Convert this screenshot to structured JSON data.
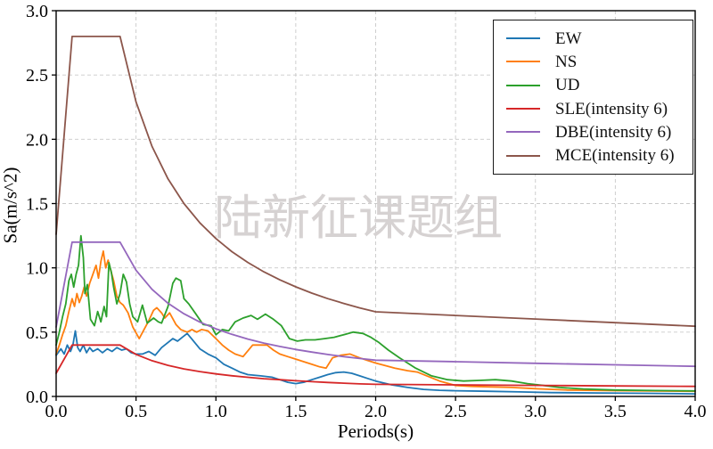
{
  "figure": {
    "watermark": {
      "text": "陆新征课题组",
      "color": "#d6d2d2",
      "font_size": 54
    },
    "background": "#ffffff",
    "axis_color": "#000000",
    "grid_color": "#c9c9c9"
  },
  "chart_data": {
    "type": "line",
    "title": "",
    "xlabel": "Periods(s)",
    "ylabel": "Sa(m/s^2)",
    "xlim": [
      0,
      4
    ],
    "ylim": [
      0,
      3
    ],
    "grid": true,
    "legend_position": "upper right",
    "xticks": [
      {
        "value": 0.0,
        "label": "0.0"
      },
      {
        "value": 0.5,
        "label": "0.5"
      },
      {
        "value": 1.0,
        "label": "1.0"
      },
      {
        "value": 1.5,
        "label": "1.5"
      },
      {
        "value": 2.0,
        "label": "2.0"
      },
      {
        "value": 2.5,
        "label": "2.5"
      },
      {
        "value": 3.0,
        "label": "3.0"
      },
      {
        "value": 3.5,
        "label": "3.5"
      },
      {
        "value": 4.0,
        "label": "4.0"
      }
    ],
    "yticks": [
      {
        "value": 0.0,
        "label": "0.0"
      },
      {
        "value": 0.5,
        "label": "0.5"
      },
      {
        "value": 1.0,
        "label": "1.0"
      },
      {
        "value": 1.5,
        "label": "1.5"
      },
      {
        "value": 2.0,
        "label": "2.0"
      },
      {
        "value": 2.5,
        "label": "2.5"
      },
      {
        "value": 3.0,
        "label": "3.0"
      }
    ],
    "series": [
      {
        "name": "EW",
        "color": "#1f77b4",
        "points": [
          [
            0,
            0.32
          ],
          [
            0.03,
            0.37
          ],
          [
            0.05,
            0.33
          ],
          [
            0.07,
            0.4
          ],
          [
            0.09,
            0.35
          ],
          [
            0.105,
            0.4
          ],
          [
            0.12,
            0.51
          ],
          [
            0.135,
            0.38
          ],
          [
            0.15,
            0.35
          ],
          [
            0.17,
            0.4
          ],
          [
            0.19,
            0.34
          ],
          [
            0.21,
            0.38
          ],
          [
            0.23,
            0.35
          ],
          [
            0.26,
            0.37
          ],
          [
            0.29,
            0.34
          ],
          [
            0.32,
            0.37
          ],
          [
            0.35,
            0.35
          ],
          [
            0.38,
            0.38
          ],
          [
            0.41,
            0.36
          ],
          [
            0.44,
            0.37
          ],
          [
            0.47,
            0.34
          ],
          [
            0.5,
            0.33
          ],
          [
            0.54,
            0.33
          ],
          [
            0.58,
            0.35
          ],
          [
            0.62,
            0.32
          ],
          [
            0.66,
            0.38
          ],
          [
            0.7,
            0.42
          ],
          [
            0.73,
            0.45
          ],
          [
            0.76,
            0.43
          ],
          [
            0.79,
            0.46
          ],
          [
            0.82,
            0.49
          ],
          [
            0.86,
            0.43
          ],
          [
            0.9,
            0.37
          ],
          [
            0.95,
            0.33
          ],
          [
            1,
            0.3
          ],
          [
            1.05,
            0.25
          ],
          [
            1.1,
            0.22
          ],
          [
            1.15,
            0.19
          ],
          [
            1.2,
            0.17
          ],
          [
            1.28,
            0.16
          ],
          [
            1.35,
            0.15
          ],
          [
            1.4,
            0.13
          ],
          [
            1.45,
            0.11
          ],
          [
            1.5,
            0.1
          ],
          [
            1.55,
            0.11
          ],
          [
            1.6,
            0.13
          ],
          [
            1.65,
            0.15
          ],
          [
            1.7,
            0.17
          ],
          [
            1.75,
            0.185
          ],
          [
            1.8,
            0.19
          ],
          [
            1.85,
            0.18
          ],
          [
            1.9,
            0.16
          ],
          [
            1.95,
            0.14
          ],
          [
            2,
            0.12
          ],
          [
            2.1,
            0.09
          ],
          [
            2.2,
            0.07
          ],
          [
            2.3,
            0.055
          ],
          [
            2.4,
            0.048
          ],
          [
            2.5,
            0.044
          ],
          [
            2.7,
            0.04
          ],
          [
            2.9,
            0.035
          ],
          [
            3.1,
            0.03
          ],
          [
            3.4,
            0.027
          ],
          [
            3.7,
            0.024
          ],
          [
            4,
            0.02
          ]
        ]
      },
      {
        "name": "NS",
        "color": "#ff7f0e",
        "points": [
          [
            0,
            0.33
          ],
          [
            0.02,
            0.4
          ],
          [
            0.04,
            0.48
          ],
          [
            0.06,
            0.55
          ],
          [
            0.08,
            0.66
          ],
          [
            0.1,
            0.76
          ],
          [
            0.115,
            0.7
          ],
          [
            0.13,
            0.8
          ],
          [
            0.145,
            0.73
          ],
          [
            0.16,
            0.78
          ],
          [
            0.175,
            0.85
          ],
          [
            0.19,
            0.78
          ],
          [
            0.21,
            0.88
          ],
          [
            0.23,
            0.95
          ],
          [
            0.25,
            1.02
          ],
          [
            0.265,
            0.92
          ],
          [
            0.28,
            1.05
          ],
          [
            0.295,
            1.13
          ],
          [
            0.31,
            1.0
          ],
          [
            0.325,
            1.06
          ],
          [
            0.34,
            0.99
          ],
          [
            0.36,
            0.9
          ],
          [
            0.38,
            0.78
          ],
          [
            0.4,
            0.73
          ],
          [
            0.42,
            0.71
          ],
          [
            0.45,
            0.65
          ],
          [
            0.48,
            0.54
          ],
          [
            0.52,
            0.45
          ],
          [
            0.55,
            0.52
          ],
          [
            0.58,
            0.59
          ],
          [
            0.61,
            0.67
          ],
          [
            0.63,
            0.69
          ],
          [
            0.66,
            0.65
          ],
          [
            0.68,
            0.61
          ],
          [
            0.71,
            0.65
          ],
          [
            0.75,
            0.56
          ],
          [
            0.78,
            0.52
          ],
          [
            0.82,
            0.5
          ],
          [
            0.85,
            0.52
          ],
          [
            0.88,
            0.5
          ],
          [
            0.91,
            0.52
          ],
          [
            0.95,
            0.51
          ],
          [
            1,
            0.45
          ],
          [
            1.04,
            0.4
          ],
          [
            1.08,
            0.36
          ],
          [
            1.12,
            0.33
          ],
          [
            1.17,
            0.31
          ],
          [
            1.23,
            0.4
          ],
          [
            1.28,
            0.4
          ],
          [
            1.32,
            0.4
          ],
          [
            1.36,
            0.36
          ],
          [
            1.4,
            0.33
          ],
          [
            1.45,
            0.31
          ],
          [
            1.5,
            0.29
          ],
          [
            1.55,
            0.27
          ],
          [
            1.6,
            0.25
          ],
          [
            1.65,
            0.23
          ],
          [
            1.69,
            0.22
          ],
          [
            1.73,
            0.3
          ],
          [
            1.78,
            0.32
          ],
          [
            1.84,
            0.33
          ],
          [
            1.9,
            0.3
          ],
          [
            1.95,
            0.28
          ],
          [
            2,
            0.26
          ],
          [
            2.06,
            0.24
          ],
          [
            2.12,
            0.22
          ],
          [
            2.2,
            0.2
          ],
          [
            2.26,
            0.19
          ],
          [
            2.32,
            0.16
          ],
          [
            2.4,
            0.12
          ],
          [
            2.5,
            0.085
          ],
          [
            2.6,
            0.078
          ],
          [
            2.7,
            0.075
          ],
          [
            2.85,
            0.07
          ],
          [
            3,
            0.06
          ],
          [
            3.2,
            0.05
          ],
          [
            3.5,
            0.045
          ],
          [
            4,
            0.04
          ]
        ]
      },
      {
        "name": "UD",
        "color": "#2ca02c",
        "points": [
          [
            0,
            0.4
          ],
          [
            0.02,
            0.5
          ],
          [
            0.04,
            0.62
          ],
          [
            0.06,
            0.72
          ],
          [
            0.08,
            0.9
          ],
          [
            0.095,
            0.95
          ],
          [
            0.11,
            0.85
          ],
          [
            0.125,
            0.95
          ],
          [
            0.14,
            1.02
          ],
          [
            0.155,
            1.25
          ],
          [
            0.17,
            1.08
          ],
          [
            0.18,
            0.8
          ],
          [
            0.195,
            0.87
          ],
          [
            0.215,
            0.6
          ],
          [
            0.24,
            0.55
          ],
          [
            0.26,
            0.66
          ],
          [
            0.28,
            0.58
          ],
          [
            0.3,
            0.7
          ],
          [
            0.315,
            0.62
          ],
          [
            0.33,
            1.04
          ],
          [
            0.345,
            0.97
          ],
          [
            0.36,
            0.85
          ],
          [
            0.38,
            0.72
          ],
          [
            0.4,
            0.8
          ],
          [
            0.42,
            0.95
          ],
          [
            0.44,
            0.89
          ],
          [
            0.46,
            0.72
          ],
          [
            0.48,
            0.62
          ],
          [
            0.51,
            0.58
          ],
          [
            0.54,
            0.71
          ],
          [
            0.57,
            0.57
          ],
          [
            0.61,
            0.61
          ],
          [
            0.64,
            0.58
          ],
          [
            0.66,
            0.57
          ],
          [
            0.7,
            0.7
          ],
          [
            0.73,
            0.88
          ],
          [
            0.75,
            0.92
          ],
          [
            0.78,
            0.9
          ],
          [
            0.8,
            0.76
          ],
          [
            0.83,
            0.72
          ],
          [
            0.87,
            0.65
          ],
          [
            0.92,
            0.56
          ],
          [
            0.97,
            0.55
          ],
          [
            1,
            0.48
          ],
          [
            1.04,
            0.52
          ],
          [
            1.08,
            0.51
          ],
          [
            1.12,
            0.58
          ],
          [
            1.17,
            0.61
          ],
          [
            1.22,
            0.63
          ],
          [
            1.26,
            0.6
          ],
          [
            1.31,
            0.64
          ],
          [
            1.36,
            0.6
          ],
          [
            1.41,
            0.55
          ],
          [
            1.46,
            0.45
          ],
          [
            1.51,
            0.43
          ],
          [
            1.56,
            0.44
          ],
          [
            1.62,
            0.44
          ],
          [
            1.68,
            0.45
          ],
          [
            1.74,
            0.46
          ],
          [
            1.8,
            0.48
          ],
          [
            1.86,
            0.5
          ],
          [
            1.92,
            0.49
          ],
          [
            1.97,
            0.46
          ],
          [
            2.02,
            0.42
          ],
          [
            2.08,
            0.36
          ],
          [
            2.15,
            0.3
          ],
          [
            2.25,
            0.22
          ],
          [
            2.35,
            0.16
          ],
          [
            2.45,
            0.13
          ],
          [
            2.55,
            0.12
          ],
          [
            2.65,
            0.125
          ],
          [
            2.75,
            0.13
          ],
          [
            2.85,
            0.12
          ],
          [
            2.95,
            0.1
          ],
          [
            3.05,
            0.085
          ],
          [
            3.15,
            0.07
          ],
          [
            3.3,
            0.058
          ],
          [
            3.5,
            0.05
          ],
          [
            3.75,
            0.046
          ],
          [
            4,
            0.043
          ]
        ]
      },
      {
        "name": "SLE(intensity 6)",
        "color": "#d62728",
        "points": [
          [
            0,
            0.18
          ],
          [
            0.1,
            0.4
          ],
          [
            0.4,
            0.4
          ],
          [
            0.5,
            0.327
          ],
          [
            0.6,
            0.278
          ],
          [
            0.7,
            0.242
          ],
          [
            0.8,
            0.214
          ],
          [
            0.9,
            0.193
          ],
          [
            1,
            0.175
          ],
          [
            1.1,
            0.161
          ],
          [
            1.2,
            0.149
          ],
          [
            1.3,
            0.138
          ],
          [
            1.4,
            0.13
          ],
          [
            1.5,
            0.122
          ],
          [
            1.6,
            0.115
          ],
          [
            1.7,
            0.109
          ],
          [
            1.8,
            0.103
          ],
          [
            1.9,
            0.098
          ],
          [
            2,
            0.094
          ],
          [
            2.5,
            0.09
          ],
          [
            3,
            0.086
          ],
          [
            3.5,
            0.082
          ],
          [
            4,
            0.078
          ]
        ]
      },
      {
        "name": "DBE(intensity 6)",
        "color": "#9467bd",
        "points": [
          [
            0,
            0.54
          ],
          [
            0.1,
            1.2
          ],
          [
            0.4,
            1.2
          ],
          [
            0.5,
            0.982
          ],
          [
            0.6,
            0.833
          ],
          [
            0.7,
            0.725
          ],
          [
            0.8,
            0.643
          ],
          [
            0.9,
            0.578
          ],
          [
            1,
            0.526
          ],
          [
            1.1,
            0.483
          ],
          [
            1.2,
            0.446
          ],
          [
            1.3,
            0.415
          ],
          [
            1.4,
            0.389
          ],
          [
            1.5,
            0.365
          ],
          [
            1.6,
            0.345
          ],
          [
            1.7,
            0.326
          ],
          [
            1.8,
            0.31
          ],
          [
            1.9,
            0.295
          ],
          [
            2,
            0.282
          ],
          [
            2.5,
            0.27
          ],
          [
            3,
            0.258
          ],
          [
            3.5,
            0.246
          ],
          [
            4,
            0.234
          ]
        ]
      },
      {
        "name": "MCE(intensity 6)",
        "color": "#8c564b",
        "points": [
          [
            0,
            1.26
          ],
          [
            0.1,
            2.8
          ],
          [
            0.4,
            2.8
          ],
          [
            0.5,
            2.291
          ],
          [
            0.6,
            1.944
          ],
          [
            0.7,
            1.692
          ],
          [
            0.8,
            1.5
          ],
          [
            0.9,
            1.35
          ],
          [
            1,
            1.228
          ],
          [
            1.1,
            1.126
          ],
          [
            1.2,
            1.042
          ],
          [
            1.3,
            0.969
          ],
          [
            1.4,
            0.907
          ],
          [
            1.5,
            0.852
          ],
          [
            1.6,
            0.804
          ],
          [
            1.7,
            0.761
          ],
          [
            1.8,
            0.723
          ],
          [
            1.9,
            0.689
          ],
          [
            2,
            0.658
          ],
          [
            2.5,
            0.63
          ],
          [
            3,
            0.602
          ],
          [
            3.5,
            0.574
          ],
          [
            4,
            0.546
          ]
        ]
      }
    ]
  }
}
